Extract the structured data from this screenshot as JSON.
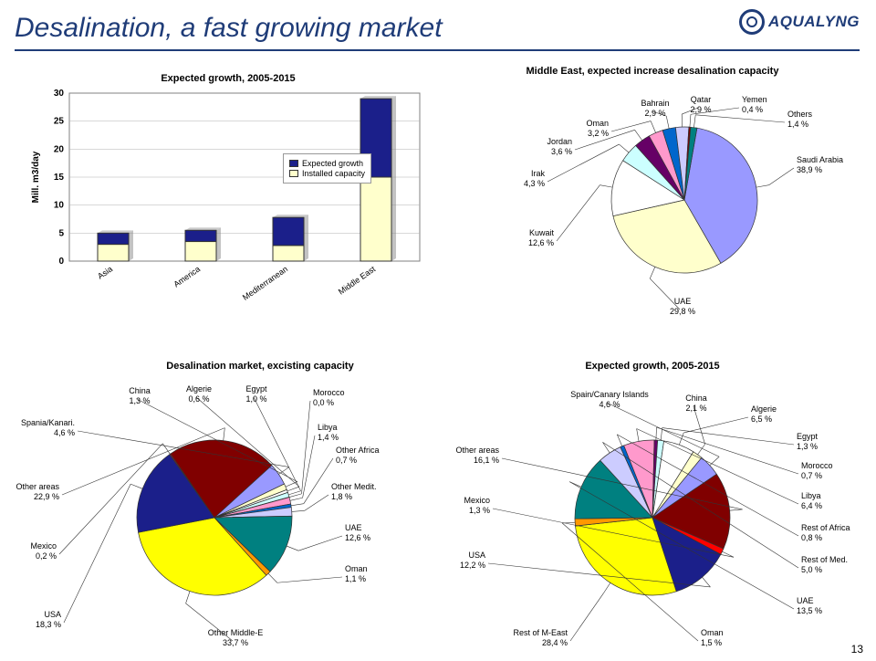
{
  "page": {
    "title": "Desalination, a fast growing market",
    "logo_text": "AQUALYNG",
    "page_number": "13"
  },
  "bar_chart": {
    "title": "Expected growth, 2005-2015",
    "ylabel": "Mill. m3/day",
    "categories": [
      "Asia",
      "America",
      "Mediterranean",
      "Middle East"
    ],
    "installed": [
      3,
      3.5,
      2.8,
      15
    ],
    "expected": [
      2,
      2,
      5,
      14
    ],
    "ylim": [
      0,
      30
    ],
    "ytick_step": 5,
    "legend": [
      "Expected growth",
      "Installed capacity"
    ],
    "colors": {
      "expected": "#1b1f8a",
      "installed": "#ffffcc",
      "border": "#333333",
      "grid": "#b0b0b0"
    }
  },
  "pie_me": {
    "title": "Middle East, expected increase desalination capacity",
    "slices": [
      {
        "label": "Saudi Arabia",
        "pct": "38,9 %",
        "v": 38.9,
        "color": "#9999ff"
      },
      {
        "label": "UAE",
        "pct": "29,8 %",
        "v": 29.8,
        "color": "#ffffcc"
      },
      {
        "label": "Kuwait",
        "pct": "12,6 %",
        "v": 12.6,
        "color": "#ffffff"
      },
      {
        "label": "Irak",
        "pct": "4,3 %",
        "v": 4.3,
        "color": "#ccffff"
      },
      {
        "label": "Jordan",
        "pct": "3,6 %",
        "v": 3.6,
        "color": "#660066"
      },
      {
        "label": "Oman",
        "pct": "3,2 %",
        "v": 3.2,
        "color": "#ff99cc"
      },
      {
        "label": "Bahrain",
        "pct": "2,9 %",
        "v": 2.9,
        "color": "#0066cc"
      },
      {
        "label": "Qatar",
        "pct": "2,9 %",
        "v": 2.9,
        "color": "#ccccff"
      },
      {
        "label": "Yemen",
        "pct": "0,4 %",
        "v": 0.4,
        "color": "#800000"
      },
      {
        "label": "Others",
        "pct": "1,4 %",
        "v": 1.4,
        "color": "#008080"
      }
    ]
  },
  "pie_existing": {
    "title": "Desalination market, excisting capacity",
    "slices": [
      {
        "label": "Other Middle-E",
        "pct": "33,7 %",
        "v": 33.7,
        "color": "#ffff00"
      },
      {
        "label": "USA",
        "pct": "18,3 %",
        "v": 18.3,
        "color": "#1b1f8a"
      },
      {
        "label": "Mexico",
        "pct": "0,2 %",
        "v": 0.2,
        "color": "#ff0000"
      },
      {
        "label": "Other areas",
        "pct": "22,9 %",
        "v": 22.9,
        "color": "#800000"
      },
      {
        "label": "Spania/Kanari.",
        "pct": "4,6 %",
        "v": 4.6,
        "color": "#9999ff"
      },
      {
        "label": "China",
        "pct": "1,3 %",
        "v": 1.3,
        "color": "#ffffcc"
      },
      {
        "label": "Algerie",
        "pct": "0,6 %",
        "v": 0.6,
        "color": "#ffffff"
      },
      {
        "label": "Egypt",
        "pct": "1,0 %",
        "v": 1.0,
        "color": "#ccffff"
      },
      {
        "label": "Morocco",
        "pct": "0,0 %",
        "v": 0.0,
        "color": "#660066"
      },
      {
        "label": "Libya",
        "pct": "1,4 %",
        "v": 1.4,
        "color": "#ff99cc"
      },
      {
        "label": "Other Africa",
        "pct": "0,7 %",
        "v": 0.7,
        "color": "#0066cc"
      },
      {
        "label": "Other Medit.",
        "pct": "1,8 %",
        "v": 1.8,
        "color": "#ccccff"
      },
      {
        "label": "UAE",
        "pct": "12,6 %",
        "v": 12.6,
        "color": "#008080"
      },
      {
        "label": "Oman",
        "pct": "1,1 %",
        "v": 1.1,
        "color": "#ff9900"
      }
    ]
  },
  "pie_growth": {
    "title": "Expected growth, 2005-2015",
    "slices": [
      {
        "label": "Rest of M-East",
        "pct": "28,4 %",
        "v": 28.4,
        "color": "#ffff00"
      },
      {
        "label": "Oman",
        "pct": "1,5 %",
        "v": 1.5,
        "color": "#ff9900"
      },
      {
        "label": "UAE",
        "pct": "13,5 %",
        "v": 13.5,
        "color": "#008080"
      },
      {
        "label": "Rest of Med.",
        "pct": "5,0 %",
        "v": 5.0,
        "color": "#ccccff"
      },
      {
        "label": "Rest of Africa",
        "pct": "0,8 %",
        "v": 0.8,
        "color": "#0066cc"
      },
      {
        "label": "Libya",
        "pct": "6,4 %",
        "v": 6.4,
        "color": "#ff99cc"
      },
      {
        "label": "Morocco",
        "pct": "0,7 %",
        "v": 0.7,
        "color": "#660066"
      },
      {
        "label": "Egypt",
        "pct": "1,3 %",
        "v": 1.3,
        "color": "#ccffff"
      },
      {
        "label": "Algerie",
        "pct": "6,5 %",
        "v": 6.5,
        "color": "#ffffff"
      },
      {
        "label": "China",
        "pct": "2,1 %",
        "v": 2.1,
        "color": "#ffffcc"
      },
      {
        "label": "Spain/Canary Islands",
        "pct": "4,6 %",
        "v": 4.6,
        "color": "#9999ff"
      },
      {
        "label": "Other areas",
        "pct": "16,1 %",
        "v": 16.1,
        "color": "#800000"
      },
      {
        "label": "Mexico",
        "pct": "1,3 %",
        "v": 1.3,
        "color": "#ff0000"
      },
      {
        "label": "USA",
        "pct": "12,2 %",
        "v": 12.2,
        "color": "#1b1f8a"
      }
    ]
  }
}
